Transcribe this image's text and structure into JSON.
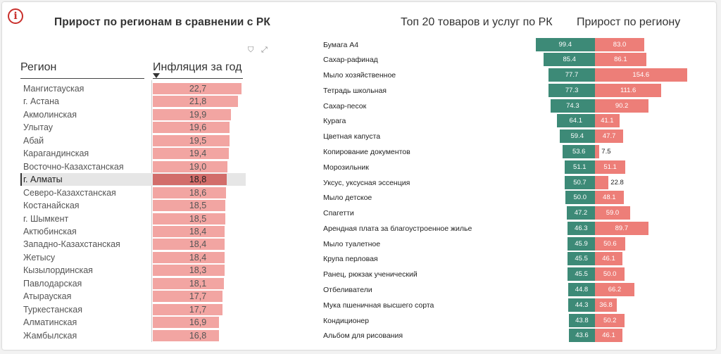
{
  "info_icon": "i",
  "icons": {
    "filter": "filter-icon",
    "expand": "expand-icon"
  },
  "left": {
    "title": "Прирост по регионам в сравнении с РК",
    "col_region": "Регион",
    "col_inflation": "Инфляция за год",
    "filter_glyph": "⛉",
    "expand_glyph": "⤢"
  },
  "right": {
    "title1": "Топ 20 товаров и услуг по РК",
    "title2": "Прирост по региону"
  },
  "colors": {
    "kz": "#3d8a77",
    "region": "#ed7e78",
    "reg_bar": "#f2a5a2",
    "reg_bar_selected": "#d26d6a"
  },
  "chart_data": [
    {
      "type": "bar",
      "orientation": "horizontal",
      "title": "Прирост по регионам в сравнении с РК",
      "categories": [
        "Мангистауская",
        "г. Астана",
        "Акмолинская",
        "Улытау",
        "Абай",
        "Карагандинская",
        "Восточно-Казахстанская",
        "г. Алматы",
        "Северо-Казахстанская",
        "Костанайская",
        "г. Шымкент",
        "Актюбинская",
        "Западно-Казахстанская",
        "Жетысу",
        "Кызылординская",
        "Павлодарская",
        "Атырауская",
        "Туркестанская",
        "Алматинская",
        "Жамбылская"
      ],
      "values": [
        22.7,
        21.8,
        19.9,
        19.6,
        19.5,
        19.4,
        19.0,
        18.8,
        18.6,
        18.5,
        18.5,
        18.4,
        18.4,
        18.4,
        18.3,
        18.1,
        17.7,
        17.7,
        16.9,
        16.8
      ],
      "labels": [
        "22,7",
        "21,8",
        "19,9",
        "19,6",
        "19,5",
        "19,4",
        "19,0",
        "18,8",
        "18,6",
        "18,5",
        "18,5",
        "18,4",
        "18,4",
        "18,4",
        "18,3",
        "18,1",
        "17,7",
        "17,7",
        "16,9",
        "16,8"
      ],
      "selected": "г. Алматы",
      "xlim": [
        0,
        23
      ]
    },
    {
      "type": "bar",
      "orientation": "horizontal-diverging",
      "title": "Топ 20 товаров и услуг по РК",
      "categories": [
        "Бумага А4",
        "Сахар-рафинад",
        "Мыло хозяйственное",
        "Тетрадь школьная",
        "Сахар-песок",
        "Курага",
        "Цветная капуста",
        "Копирование документов",
        "Морозильник",
        "Уксус, уксусная эссенция",
        "Мыло детское",
        "Спагетти",
        "Арендная плата за благоустроенное жилье",
        "Мыло туалетное",
        "Крупа перловая",
        "Ранец, рюкзак ученический",
        "Отбеливатели",
        "Мука пшеничная высшего сорта",
        "Кондиционер",
        "Альбом для рисования"
      ],
      "series": [
        {
          "values": [
            99.4,
            85.4,
            77.7,
            77.3,
            74.3,
            64.1,
            59.4,
            53.6,
            51.1,
            50.7,
            50.0,
            47.2,
            46.3,
            45.9,
            45.5,
            45.5,
            44.8,
            44.3,
            43.8,
            43.6
          ]
        },
        {
          "name": "Прирост по региону",
          "values": [
            83.0,
            86.1,
            154.6,
            111.6,
            90.2,
            41.1,
            47.7,
            7.5,
            51.1,
            22.8,
            48.1,
            59.0,
            89.7,
            50.6,
            46.1,
            50.0,
            66.2,
            36.8,
            50.2,
            46.1
          ]
        }
      ]
    }
  ]
}
